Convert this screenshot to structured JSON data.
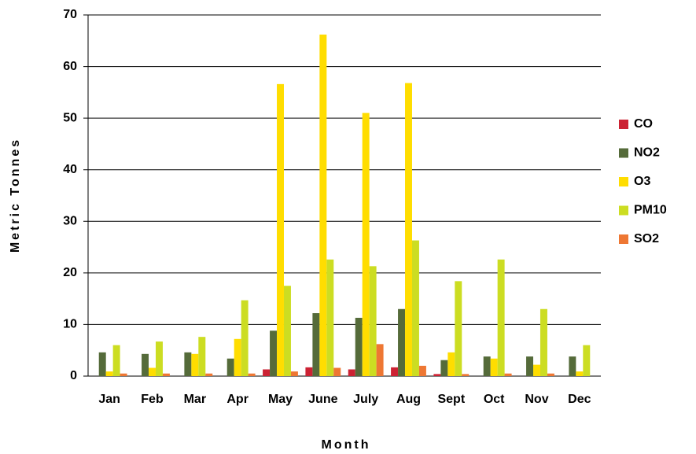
{
  "chart_data": {
    "type": "bar",
    "x_label": "Month",
    "y_label": "Metric Tonnes",
    "categories": [
      "Jan",
      "Feb",
      "Mar",
      "Apr",
      "May",
      "June",
      "July",
      "Aug",
      "Sept",
      "Oct",
      "Nov",
      "Dec"
    ],
    "series": [
      {
        "name": "CO",
        "color": "#cc2233",
        "values": [
          0,
          0,
          0,
          0,
          1.3,
          1.7,
          1.3,
          1.7,
          0.4,
          0,
          0,
          0
        ]
      },
      {
        "name": "NO2",
        "color": "#556b3a",
        "values": [
          4.6,
          4.3,
          4.6,
          3.4,
          8.8,
          12.2,
          11.3,
          13,
          3.1,
          3.8,
          3.8,
          3.8
        ]
      },
      {
        "name": "O3",
        "color": "#ffdd00",
        "values": [
          0.9,
          1.6,
          4.3,
          7.2,
          56.6,
          66.2,
          51,
          56.8,
          4.6,
          3.4,
          2.2,
          0.9
        ]
      },
      {
        "name": "PM10",
        "color": "#ccdd22",
        "values": [
          6,
          6.7,
          7.6,
          14.7,
          17.5,
          22.6,
          21.3,
          26.3,
          18.4,
          22.6,
          13,
          6
        ]
      },
      {
        "name": "SO2",
        "color": "#ee7733",
        "values": [
          0.5,
          0.5,
          0.5,
          0.5,
          0.9,
          1.6,
          6.2,
          2,
          0.4,
          0.5,
          0.5,
          0
        ]
      }
    ],
    "ylim": [
      0,
      70
    ],
    "yticks": [
      0,
      10,
      20,
      30,
      40,
      50,
      60,
      70
    ],
    "grid": true,
    "legend": "right"
  }
}
